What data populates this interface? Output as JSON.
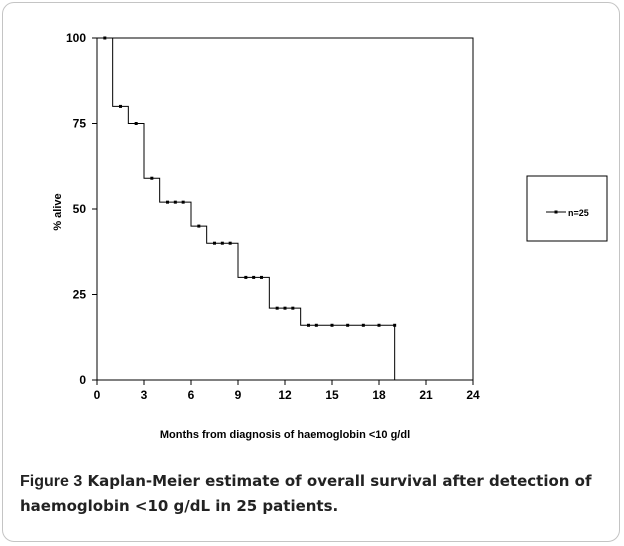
{
  "chart_data": {
    "type": "line",
    "step": true,
    "xlabel": "Months from diagnosis of haemoglobin <10 g/dl",
    "ylabel": "% alive",
    "xlim": [
      0,
      24
    ],
    "ylim": [
      0,
      100
    ],
    "xticks": [
      0,
      3,
      6,
      9,
      12,
      15,
      18,
      21,
      24
    ],
    "yticks": [
      0,
      25,
      50,
      75,
      100
    ],
    "grid": false,
    "legend_position": "right",
    "series": [
      {
        "name": "n=25",
        "color": "#000000",
        "x": [
          0,
          1,
          2,
          3,
          4,
          6,
          7,
          9,
          11,
          13,
          19
        ],
        "y": [
          100,
          80,
          75,
          59,
          52,
          45,
          40,
          30,
          21,
          16,
          0
        ],
        "censored": [
          [
            0.5,
            100
          ],
          [
            1.5,
            80
          ],
          [
            2.5,
            75
          ],
          [
            3.5,
            59
          ],
          [
            4.5,
            52
          ],
          [
            5.0,
            52
          ],
          [
            5.5,
            52
          ],
          [
            6.5,
            45
          ],
          [
            7.5,
            40
          ],
          [
            8.0,
            40
          ],
          [
            8.5,
            40
          ],
          [
            9.5,
            30
          ],
          [
            10.0,
            30
          ],
          [
            10.5,
            30
          ],
          [
            11.5,
            21
          ],
          [
            12.0,
            21
          ],
          [
            12.5,
            21
          ],
          [
            13.5,
            16
          ],
          [
            14.0,
            16
          ],
          [
            15.0,
            16
          ],
          [
            16.0,
            16
          ],
          [
            17.0,
            16
          ],
          [
            18.0,
            16
          ],
          [
            19.0,
            16
          ]
        ]
      }
    ]
  },
  "caption": {
    "label": "Figure 3",
    "text": " Kaplan-Meier estimate of overall survival after detection of haemoglobin <10 g/dL in 25 patients."
  }
}
